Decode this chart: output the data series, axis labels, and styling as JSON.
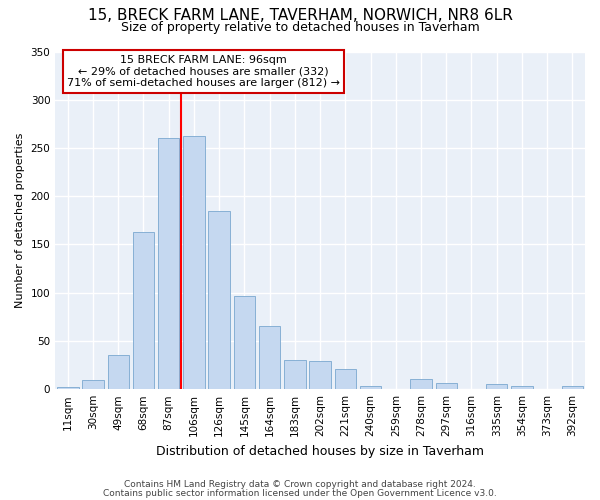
{
  "title": "15, BRECK FARM LANE, TAVERHAM, NORWICH, NR8 6LR",
  "subtitle": "Size of property relative to detached houses in Taverham",
  "xlabel": "Distribution of detached houses by size in Taverham",
  "ylabel": "Number of detached properties",
  "bar_labels": [
    "11sqm",
    "30sqm",
    "49sqm",
    "68sqm",
    "87sqm",
    "106sqm",
    "126sqm",
    "145sqm",
    "164sqm",
    "183sqm",
    "202sqm",
    "221sqm",
    "240sqm",
    "259sqm",
    "278sqm",
    "297sqm",
    "316sqm",
    "335sqm",
    "354sqm",
    "373sqm",
    "392sqm"
  ],
  "bar_values": [
    2,
    10,
    35,
    163,
    260,
    262,
    185,
    97,
    65,
    30,
    29,
    21,
    3,
    0,
    11,
    6,
    0,
    5,
    3,
    0,
    3
  ],
  "bar_color": "#c5d8f0",
  "bar_edge_color": "#7aa8d0",
  "red_line_x": 4.5,
  "property_label": "15 BRECK FARM LANE: 96sqm",
  "annotation_line1": "← 29% of detached houses are smaller (332)",
  "annotation_line2": "71% of semi-detached houses are larger (812) →",
  "annotation_box_color": "#ffffff",
  "annotation_box_edge": "#cc0000",
  "background_color": "#eaf0f8",
  "grid_color": "#ffffff",
  "footer1": "Contains HM Land Registry data © Crown copyright and database right 2024.",
  "footer2": "Contains public sector information licensed under the Open Government Licence v3.0.",
  "ylim": [
    0,
    350
  ],
  "yticks": [
    0,
    50,
    100,
    150,
    200,
    250,
    300,
    350
  ],
  "title_fontsize": 11,
  "subtitle_fontsize": 9,
  "ylabel_fontsize": 8,
  "xlabel_fontsize": 9,
  "tick_fontsize": 7.5,
  "annotation_fontsize": 8
}
